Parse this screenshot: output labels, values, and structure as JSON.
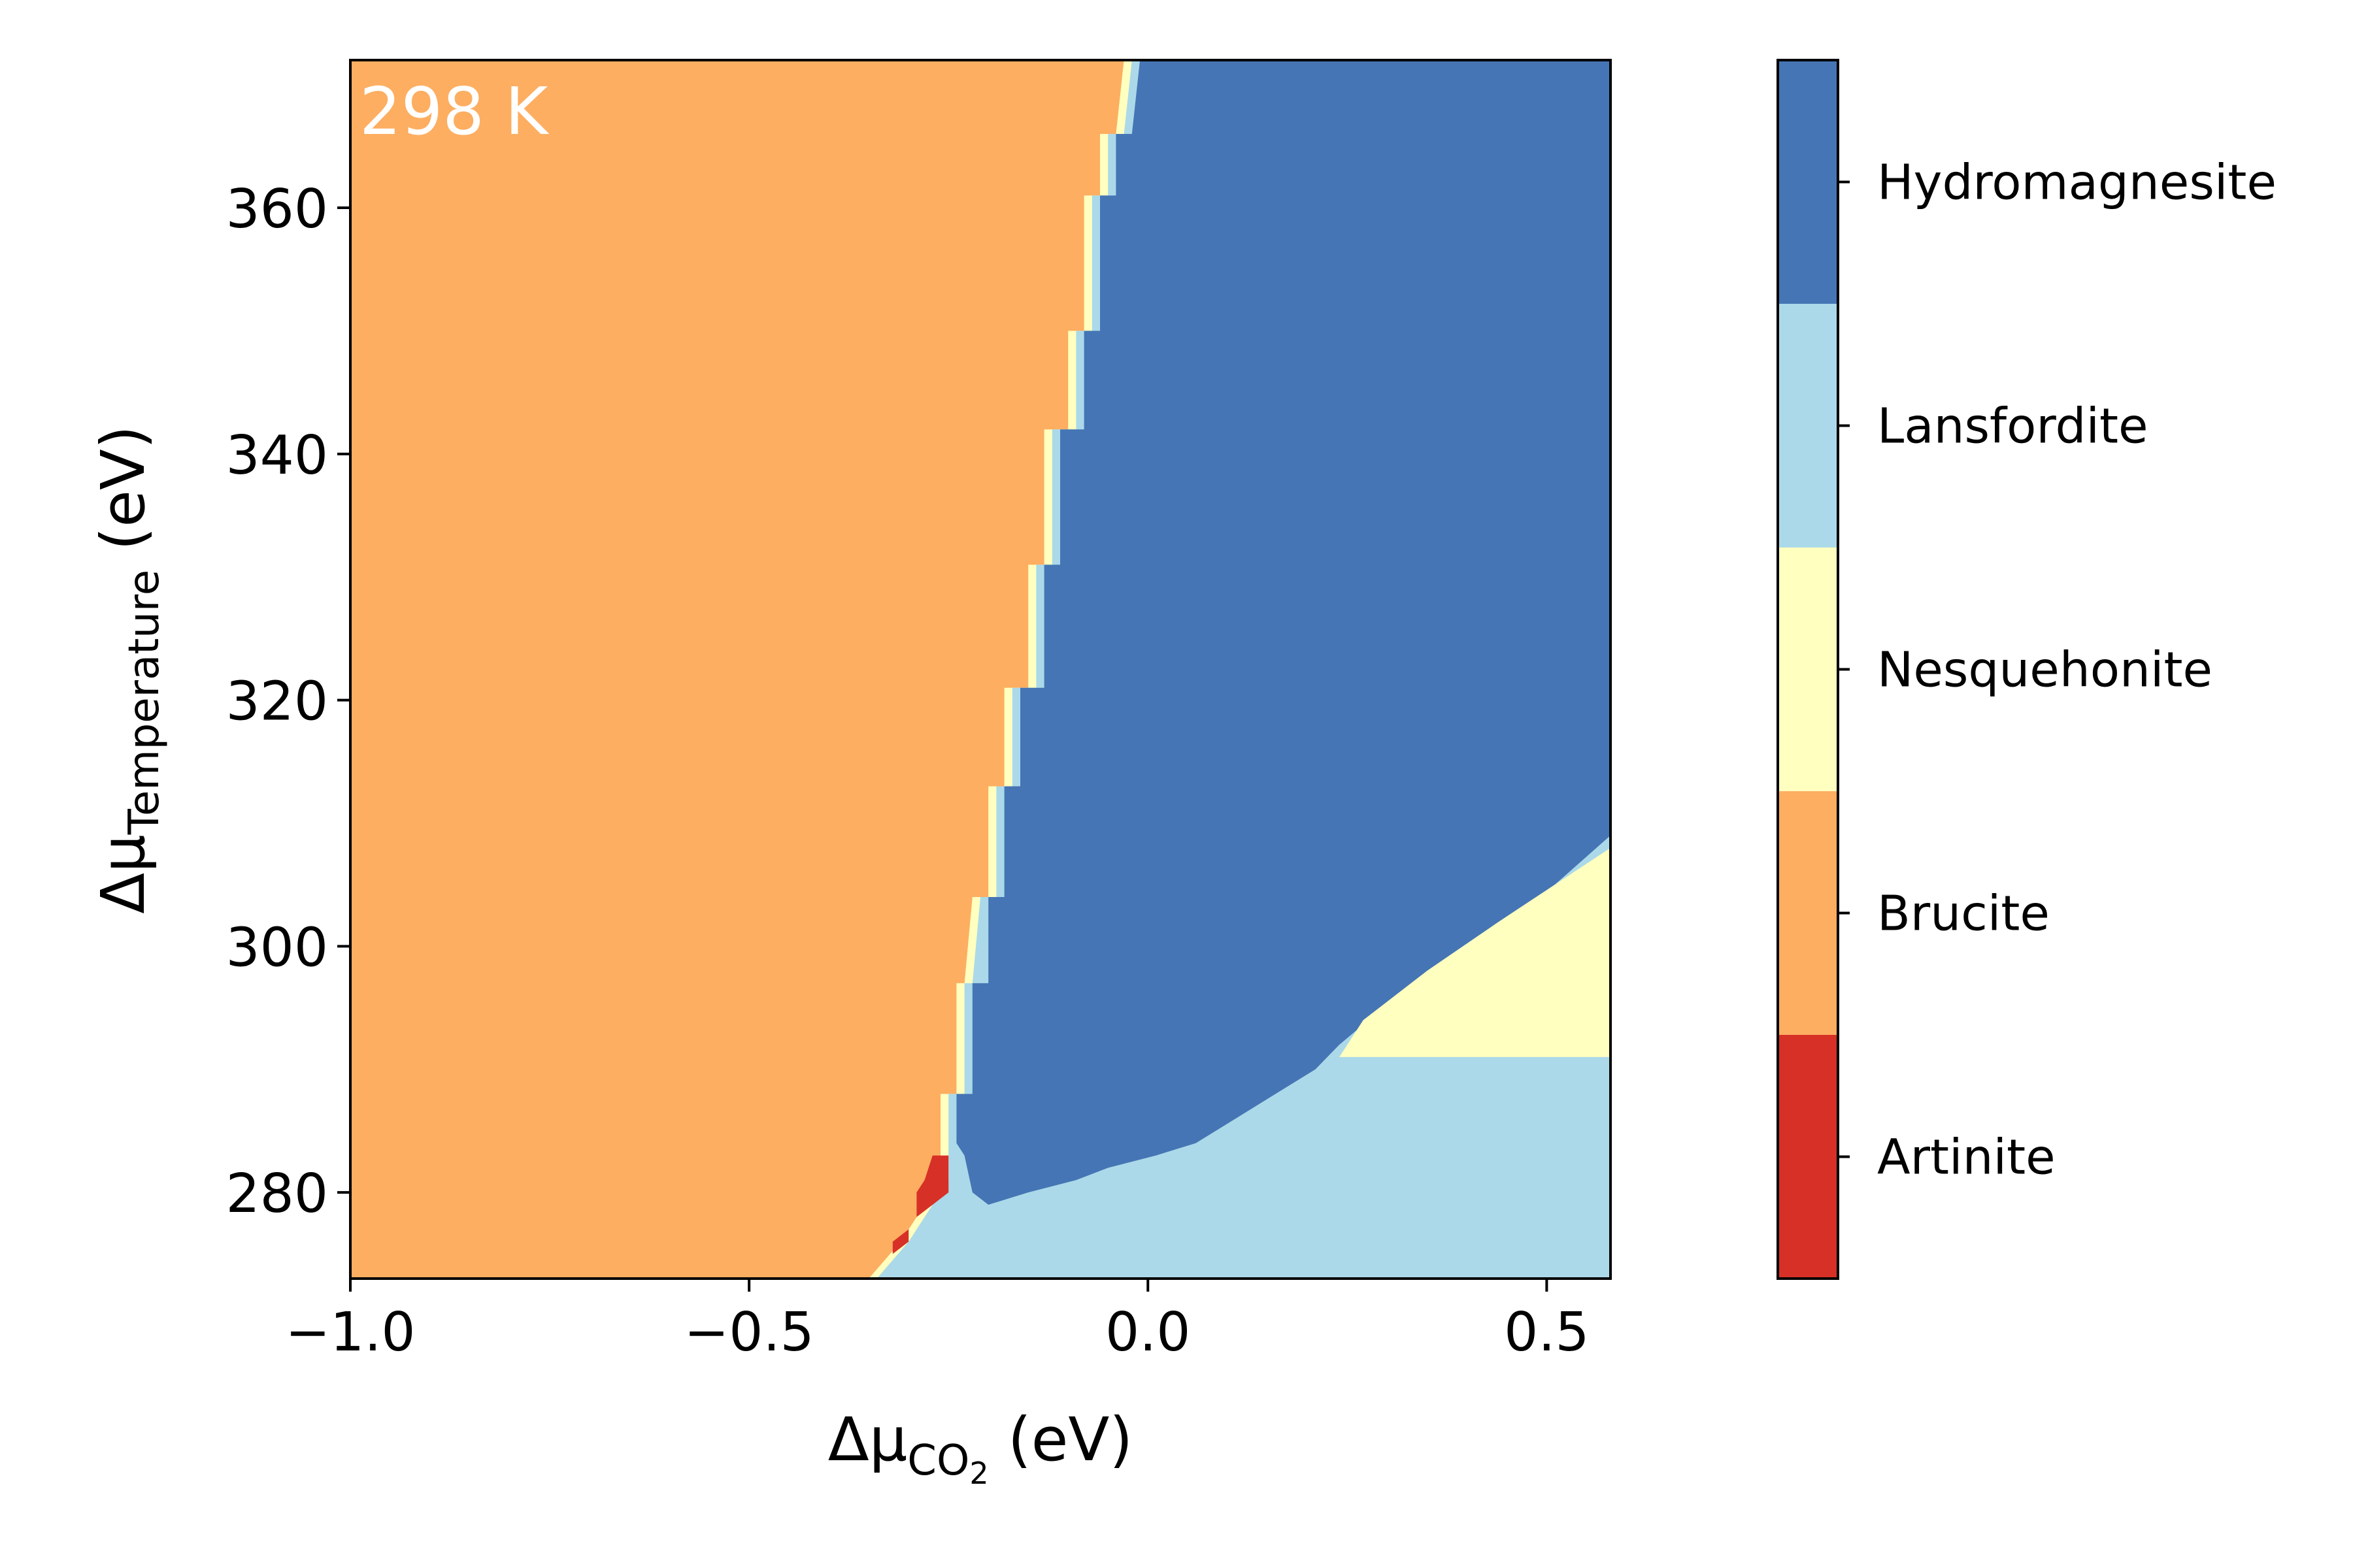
{
  "chart_data": {
    "type": "heatmap",
    "title": "",
    "annotation": "298 K",
    "xlabel": {
      "base": "Δμ",
      "sub": "CO",
      "sub2": "2",
      "unit": " (eV)"
    },
    "ylabel": {
      "base": "Δμ",
      "sub": "Temperature",
      "unit": " (eV)"
    },
    "xlim": [
      -1.0,
      0.58
    ],
    "ylim": [
      273,
      372
    ],
    "xticks": [
      {
        "value": -1.0,
        "label": "−1.0"
      },
      {
        "value": -0.5,
        "label": "−0.5"
      },
      {
        "value": 0.0,
        "label": "0.0"
      },
      {
        "value": 0.5,
        "label": "0.5"
      }
    ],
    "yticks": [
      {
        "value": 280,
        "label": "280"
      },
      {
        "value": 300,
        "label": "300"
      },
      {
        "value": 320,
        "label": "320"
      },
      {
        "value": 340,
        "label": "340"
      },
      {
        "value": 360,
        "label": "360"
      }
    ],
    "grid": false,
    "legend": "colorbar-right",
    "phases": [
      {
        "name": "Artinite",
        "color": "#d73027"
      },
      {
        "name": "Brucite",
        "color": "#fdae61"
      },
      {
        "name": "Nesquehonite",
        "color": "#ffffbf"
      },
      {
        "name": "Lansfordite",
        "color": "#abd9e9"
      },
      {
        "name": "Hydromagnesite",
        "color": "#4575b4"
      }
    ],
    "regions": [
      {
        "phase": "Brucite",
        "polygon": [
          [
            -1.0,
            273
          ],
          [
            -1.0,
            372
          ],
          [
            0.58,
            372
          ],
          [
            0.58,
            273
          ]
        ]
      },
      {
        "phase": "Nesquehonite",
        "polygon": [
          [
            -0.03,
            372
          ],
          [
            -0.04,
            366
          ],
          [
            -0.06,
            366
          ],
          [
            -0.06,
            361
          ],
          [
            -0.08,
            361
          ],
          [
            -0.08,
            350
          ],
          [
            -0.1,
            350
          ],
          [
            -0.1,
            342
          ],
          [
            -0.13,
            342
          ],
          [
            -0.13,
            331
          ],
          [
            -0.15,
            331
          ],
          [
            -0.15,
            321
          ],
          [
            -0.18,
            321
          ],
          [
            -0.18,
            313
          ],
          [
            -0.2,
            313
          ],
          [
            -0.2,
            304
          ],
          [
            -0.22,
            304
          ],
          [
            -0.23,
            297
          ],
          [
            -0.24,
            297
          ],
          [
            -0.24,
            288
          ],
          [
            -0.26,
            288
          ],
          [
            -0.26,
            281
          ],
          [
            -0.28,
            279
          ],
          [
            -0.31,
            276
          ],
          [
            -0.35,
            273
          ],
          [
            0.58,
            273
          ],
          [
            0.58,
            372
          ]
        ]
      },
      {
        "phase": "Lansfordite",
        "polygon": [
          [
            -0.02,
            372
          ],
          [
            -0.03,
            366
          ],
          [
            -0.05,
            366
          ],
          [
            -0.05,
            361
          ],
          [
            -0.07,
            361
          ],
          [
            -0.07,
            350
          ],
          [
            -0.09,
            350
          ],
          [
            -0.09,
            342
          ],
          [
            -0.12,
            342
          ],
          [
            -0.12,
            331
          ],
          [
            -0.14,
            331
          ],
          [
            -0.14,
            321
          ],
          [
            -0.17,
            321
          ],
          [
            -0.17,
            313
          ],
          [
            -0.19,
            313
          ],
          [
            -0.19,
            304
          ],
          [
            -0.21,
            304
          ],
          [
            -0.22,
            297
          ],
          [
            -0.23,
            297
          ],
          [
            -0.23,
            288
          ],
          [
            -0.25,
            288
          ],
          [
            -0.25,
            281
          ],
          [
            -0.27,
            279
          ],
          [
            -0.3,
            276
          ],
          [
            -0.34,
            273
          ],
          [
            0.58,
            273
          ],
          [
            0.58,
            372
          ]
        ]
      },
      {
        "phase": "Hydromagnesite",
        "polygon": [
          [
            -0.01,
            372
          ],
          [
            0.58,
            372
          ],
          [
            0.58,
            309
          ],
          [
            0.51,
            305
          ],
          [
            0.44,
            302
          ],
          [
            0.35,
            298
          ],
          [
            0.24,
            292
          ],
          [
            0.21,
            290
          ],
          [
            0.16,
            288
          ],
          [
            0.11,
            286
          ],
          [
            0.06,
            284
          ],
          [
            0.01,
            283
          ],
          [
            -0.05,
            282
          ],
          [
            -0.09,
            281
          ],
          [
            -0.15,
            280
          ],
          [
            -0.2,
            279
          ],
          [
            -0.22,
            280
          ],
          [
            -0.23,
            283
          ],
          [
            -0.24,
            284
          ],
          [
            -0.24,
            288
          ],
          [
            -0.22,
            288
          ],
          [
            -0.22,
            297
          ],
          [
            -0.2,
            297
          ],
          [
            -0.2,
            304
          ],
          [
            -0.18,
            304
          ],
          [
            -0.18,
            313
          ],
          [
            -0.16,
            313
          ],
          [
            -0.16,
            321
          ],
          [
            -0.13,
            321
          ],
          [
            -0.13,
            331
          ],
          [
            -0.11,
            331
          ],
          [
            -0.11,
            342
          ],
          [
            -0.08,
            342
          ],
          [
            -0.08,
            350
          ],
          [
            -0.06,
            350
          ],
          [
            -0.06,
            361
          ],
          [
            -0.04,
            361
          ],
          [
            -0.04,
            366
          ],
          [
            -0.02,
            366
          ]
        ]
      },
      {
        "phase": "Nesquehonite",
        "polygon": [
          [
            0.24,
            291
          ],
          [
            0.58,
            291
          ],
          [
            0.58,
            308
          ],
          [
            0.51,
            305
          ],
          [
            0.44,
            302
          ],
          [
            0.35,
            298
          ],
          [
            0.27,
            294
          ]
        ]
      },
      {
        "phase": "Artinite",
        "polygon": [
          [
            -0.27,
            283
          ],
          [
            -0.25,
            283
          ],
          [
            -0.25,
            280
          ],
          [
            -0.27,
            279
          ],
          [
            -0.29,
            278
          ],
          [
            -0.29,
            280
          ],
          [
            -0.28,
            281
          ]
        ]
      },
      {
        "phase": "Artinite",
        "polygon": [
          [
            -0.32,
            275
          ],
          [
            -0.3,
            276
          ],
          [
            -0.3,
            277
          ],
          [
            -0.32,
            276
          ]
        ]
      }
    ]
  }
}
